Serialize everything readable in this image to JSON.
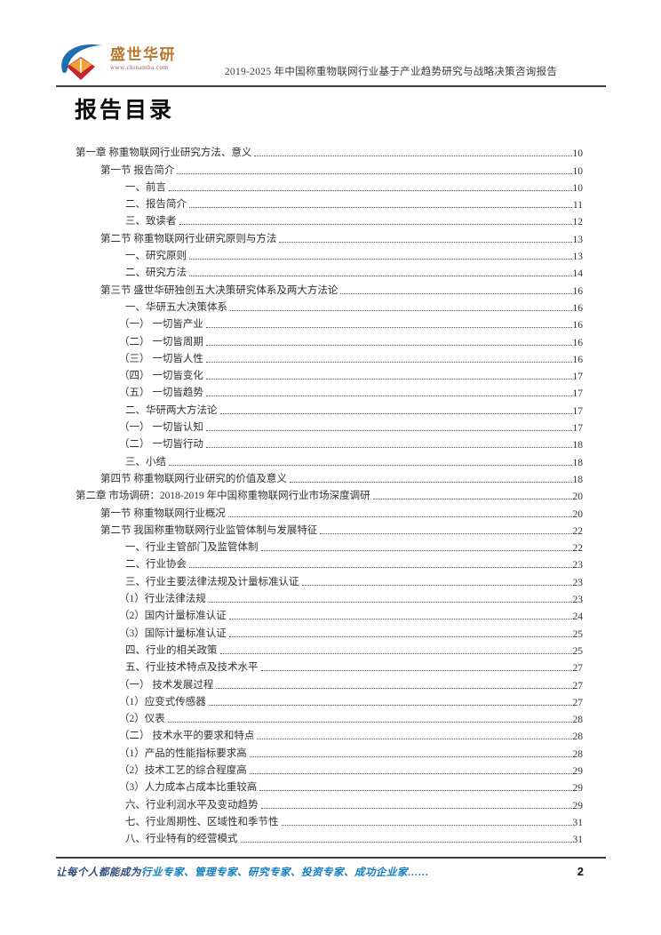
{
  "header": {
    "brand_name": "盛世华研",
    "brand_url": "www.chinamba.com",
    "report_title": "2019-2025 年中国称重物联网行业基于产业趋势研究与战略决策咨询报告"
  },
  "page_title": "报告目录",
  "toc": {
    "entries": [
      {
        "level": 1,
        "title": "第一章 称重物联网行业研究方法、意义",
        "page": "10"
      },
      {
        "level": 2,
        "title": "第一节 报告简介",
        "page": "10"
      },
      {
        "level": 3,
        "title": "一、前言",
        "page": "10"
      },
      {
        "level": 3,
        "title": "二、报告简介",
        "page": "11"
      },
      {
        "level": 3,
        "title": "三、致读者",
        "page": "12"
      },
      {
        "level": 2,
        "title": "第二节 称重物联网行业研究原则与方法",
        "page": "13"
      },
      {
        "level": 3,
        "title": "一、研究原则",
        "page": "13"
      },
      {
        "level": 3,
        "title": "二、研究方法",
        "page": "14"
      },
      {
        "level": 2,
        "title": "第三节 盛世华研独创五大决策研究体系及两大方法论",
        "page": "16"
      },
      {
        "level": 3,
        "title": "一、华研五大决策体系",
        "page": "16"
      },
      {
        "level": 4,
        "title": "（一） 一切皆产业",
        "page": "16"
      },
      {
        "level": 4,
        "title": "（二） 一切皆周期",
        "page": "16"
      },
      {
        "level": 4,
        "title": "（三） 一切皆人性",
        "page": "16"
      },
      {
        "level": 4,
        "title": "（四） 一切皆变化",
        "page": "17"
      },
      {
        "level": 4,
        "title": "（五） 一切皆趋势",
        "page": "17"
      },
      {
        "level": 3,
        "title": "二、华研两大方法论",
        "page": "17"
      },
      {
        "level": 4,
        "title": "（一） 一切皆认知",
        "page": "17"
      },
      {
        "level": 4,
        "title": "（二） 一切皆行动",
        "page": "18"
      },
      {
        "level": 3,
        "title": "三、小结",
        "page": "18"
      },
      {
        "level": 2,
        "title": "第四节 称重物联网行业研究的价值及意义",
        "page": "18"
      },
      {
        "level": 1,
        "title": "第二章 市场调研：2018-2019 年中国称重物联网行业市场深度调研",
        "page": "20"
      },
      {
        "level": 2,
        "title": "第一节 称重物联网行业概况",
        "page": "20"
      },
      {
        "level": 2,
        "title": "第二节 我国称重物联网行业监管体制与发展特征",
        "page": "22"
      },
      {
        "level": 3,
        "title": "一、行业主管部门及监管体制",
        "page": "22"
      },
      {
        "level": 3,
        "title": "二、行业协会",
        "page": "23"
      },
      {
        "level": 3,
        "title": "三、行业主要法律法规及计量标准认证",
        "page": "23"
      },
      {
        "level": 4,
        "title": "（1）行业法律法规",
        "page": "23"
      },
      {
        "level": 4,
        "title": "（2）国内计量标准认证",
        "page": "24"
      },
      {
        "level": 4,
        "title": "（3）国际计量标准认证",
        "page": "25"
      },
      {
        "level": 3,
        "title": "四、行业的相关政策",
        "page": "25"
      },
      {
        "level": 3,
        "title": "五、行业技术特点及技术水平",
        "page": "27"
      },
      {
        "level": 4,
        "title": "（一） 技术发展过程",
        "page": "27"
      },
      {
        "level": 4,
        "title": "（1）应变式传感器",
        "page": "27"
      },
      {
        "level": 4,
        "title": "（2）仪表",
        "page": "28"
      },
      {
        "level": 4,
        "title": "（二） 技术水平的要求和特点",
        "page": "28"
      },
      {
        "level": 4,
        "title": "（1）产品的性能指标要求高",
        "page": "28"
      },
      {
        "level": 4,
        "title": "（2）技术工艺的综合程度高",
        "page": "29"
      },
      {
        "level": 4,
        "title": "（3）人力成本占成本比重较高",
        "page": "29"
      },
      {
        "level": 3,
        "title": "六、行业利润水平及变动趋势",
        "page": "29"
      },
      {
        "level": 3,
        "title": "七、行业周期性、区域性和季节性",
        "page": "31"
      },
      {
        "level": 3,
        "title": "八、行业特有的经营模式",
        "page": "31"
      }
    ]
  },
  "footer": {
    "slogan_prefix": "让每个人都能成为",
    "slogan_highlight": "行业专家、管理专家、研究专家、投资专家、成功企业家……",
    "page_number": "2"
  },
  "colors": {
    "brand_orange": "#b5782d",
    "logo_blue": "#1f6fb0",
    "logo_red": "#c1272d",
    "logo_page_orange": "#f2a23a",
    "slogan_blue": "#0e7dc2",
    "slogan_dark_blue": "#2e4e7e",
    "rule_gray": "#3d3d3d",
    "text_gray": "#333333"
  }
}
